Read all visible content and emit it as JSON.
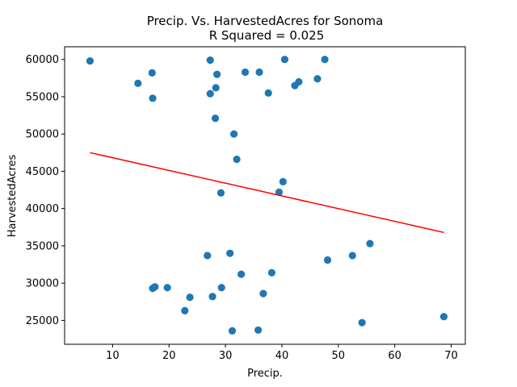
{
  "chart_data": {
    "type": "scatter",
    "title": "Precip. Vs. HarvestedAcres for Sonoma",
    "subtitle": "R Squared =  0.025",
    "xlabel": "Precip.",
    "ylabel": "HarvestedAcres",
    "xlim": [
      1.5,
      72.5
    ],
    "ylim": [
      21800,
      61700
    ],
    "xticks": [
      10,
      20,
      30,
      40,
      50,
      60,
      70
    ],
    "yticks": [
      25000,
      30000,
      35000,
      40000,
      45000,
      50000,
      55000,
      60000
    ],
    "grid": false,
    "series": [
      {
        "kind": "scatter",
        "color": "#1f77b4",
        "points": [
          [
            6,
            59800
          ],
          [
            14.5,
            56800
          ],
          [
            17,
            58200
          ],
          [
            17.1,
            54800
          ],
          [
            27.3,
            59900
          ],
          [
            28.5,
            58000
          ],
          [
            28.3,
            56200
          ],
          [
            27.3,
            55400
          ],
          [
            28.2,
            52100
          ],
          [
            31.5,
            50000
          ],
          [
            32.0,
            46600
          ],
          [
            29.2,
            42100
          ],
          [
            33.5,
            58300
          ],
          [
            36.0,
            58300
          ],
          [
            37.6,
            55500
          ],
          [
            40.5,
            60000
          ],
          [
            42.3,
            56500
          ],
          [
            43.0,
            57000
          ],
          [
            46.3,
            57400
          ],
          [
            47.6,
            60000
          ],
          [
            40.2,
            43600
          ],
          [
            39.5,
            42200
          ],
          [
            26.8,
            33700
          ],
          [
            30.8,
            34000
          ],
          [
            32.8,
            31200
          ],
          [
            38.2,
            31400
          ],
          [
            48.1,
            33100
          ],
          [
            52.5,
            33700
          ],
          [
            55.6,
            35300
          ],
          [
            17.1,
            29300
          ],
          [
            17.5,
            29500
          ],
          [
            19.7,
            29400
          ],
          [
            23.7,
            28100
          ],
          [
            22.8,
            26300
          ],
          [
            27.7,
            28200
          ],
          [
            29.3,
            29400
          ],
          [
            36.7,
            28600
          ],
          [
            31.2,
            23600
          ],
          [
            35.8,
            23700
          ],
          [
            54.2,
            24700
          ],
          [
            68.7,
            25500
          ]
        ]
      },
      {
        "kind": "line",
        "color": "#ff0000",
        "points": [
          [
            6,
            47500
          ],
          [
            68.7,
            36800
          ]
        ]
      }
    ]
  }
}
